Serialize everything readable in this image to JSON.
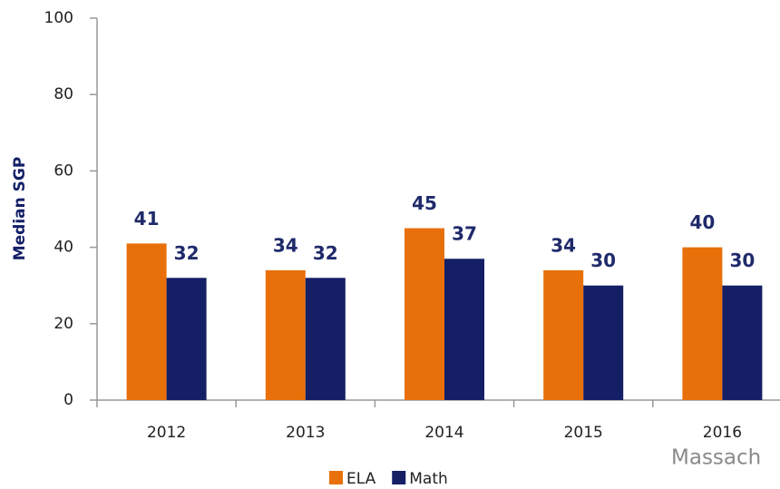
{
  "chart_data": {
    "type": "bar",
    "categories": [
      "2012",
      "2013",
      "2014",
      "2015",
      "2016"
    ],
    "series": [
      {
        "name": "ELA",
        "color": "#e8700a",
        "values": [
          41,
          34,
          45,
          34,
          40
        ]
      },
      {
        "name": "Math",
        "color": "#141f66",
        "values": [
          32,
          32,
          37,
          30,
          30
        ]
      }
    ],
    "ylabel": "Median SGP",
    "ylim": [
      0,
      100
    ],
    "yticks": [
      0,
      20,
      40,
      60,
      80,
      100
    ],
    "grid": false,
    "legend": "bottom",
    "annotation": "Massach"
  }
}
